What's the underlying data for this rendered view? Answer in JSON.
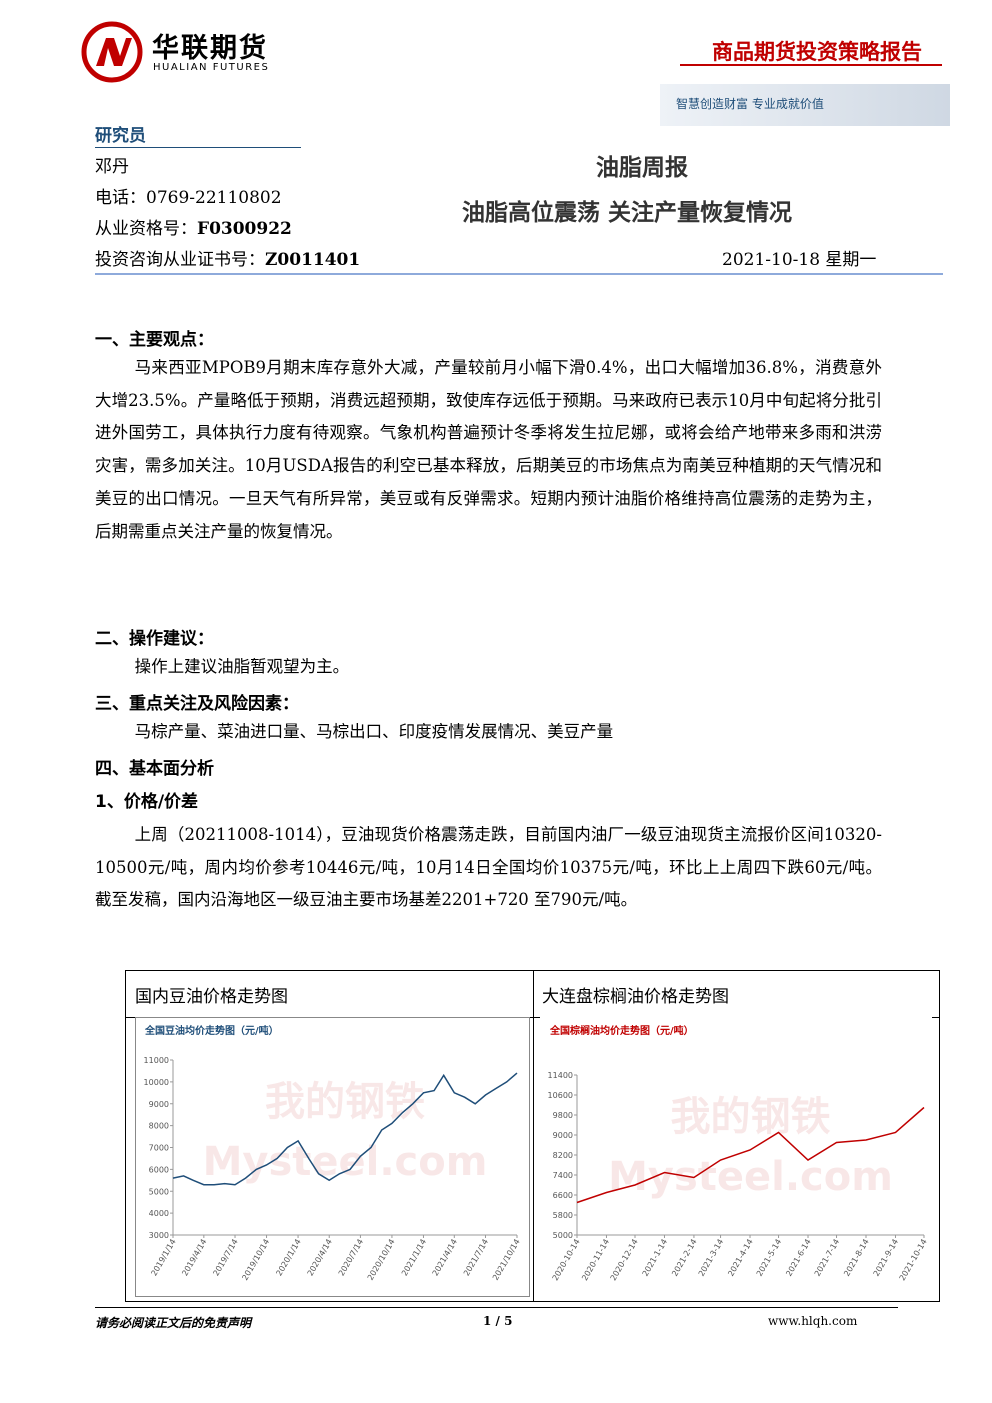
{
  "header": {
    "logo_cn": "华联期货",
    "logo_en": "HUALIAN FUTURES",
    "report_type": "商品期货投资策略报告",
    "slogan": "智慧创造财富 专业成就价值"
  },
  "analyst": {
    "heading": "研究员",
    "name": "邓丹",
    "phone_label": "电话：",
    "phone": "0769-22110802",
    "qual_label": "从业资格号：",
    "qual": "F0300922",
    "cert_label": "投资咨询从业证书号：",
    "cert": "Z0011401"
  },
  "title": {
    "main": "油脂周报",
    "sub": "油脂高位震荡 关注产量恢复情况",
    "date": "2021-10-18 星期一"
  },
  "sections": [
    {
      "heading": "一、主要观点：",
      "text": "马来西亚MPOB9月期末库存意外大减，产量较前月小幅下滑0.4%，出口大幅增加36.8%，消费意外大增23.5%。产量略低于预期，消费远超预期，致使库存远低于预期。马来政府已表示10月中旬起将分批引进外国劳工，具体执行力度有待观察。气象机构普遍预计冬季将发生拉尼娜，或将会给产地带来多雨和洪涝灾害，需多加关注。10月USDA报告的利空已基本释放，后期美豆的市场焦点为南美豆种植期的天气情况和美豆的出口情况。一旦天气有所异常，美豆或有反弹需求。短期内预计油脂价格维持高位震荡的走势为主，后期需重点关注产量的恢复情况。"
    },
    {
      "heading": "二、操作建议：",
      "text": "操作上建议油脂暂观望为主。"
    },
    {
      "heading": "三、重点关注及风险因素：",
      "text": "马棕产量、菜油进口量、马棕出口、印度疫情发展情况、美豆产量"
    },
    {
      "heading": "四、基本面分析"
    },
    {
      "heading": "1、价格/价差",
      "text": "上周（20211008-1014），豆油现货价格震荡走跌，目前国内油厂一级豆油现货主流报价区间10320-10500元/吨，周内均价参考10446元/吨，10月14日全国均价10375元/吨，环比上上周四下跌60元/吨。截至发稿，国内沿海地区一级豆油主要市场基差2201+720 至790元/吨。"
    }
  ],
  "chart_table": {
    "headers": [
      "国内豆油价格走势图",
      "大连盘棕榈油价格走势图"
    ]
  },
  "watermark": [
    "我的钢铁",
    "Mysteel.com"
  ],
  "chart_data": [
    {
      "type": "line",
      "title": "全国豆油均价走势图（元/吨）",
      "x": [
        "2019/1/14",
        "2019/2/14",
        "2019/3/14",
        "2019/4/14",
        "2019/5/14",
        "2019/6/14",
        "2019/7/14",
        "2019/8/14",
        "2019/9/14",
        "2019/10/14",
        "2019/11/14",
        "2019/12/14",
        "2020/1/14",
        "2020/2/14",
        "2020/3/14",
        "2020/4/14",
        "2020/5/14",
        "2020/6/14",
        "2020/7/14",
        "2020/8/14",
        "2020/9/14",
        "2020/10/14",
        "2020/11/14",
        "2020/12/14",
        "2021/1/14",
        "2021/2/14",
        "2021/3/14",
        "2021/4/14",
        "2021/5/14",
        "2021/6/14",
        "2021/7/14",
        "2021/8/14",
        "2021/9/14",
        "2021/10/14"
      ],
      "series": [
        {
          "color": "#1f4e79",
          "values": [
            5600,
            5700,
            5500,
            5300,
            5300,
            5350,
            5300,
            5600,
            6000,
            6200,
            6500,
            7000,
            7300,
            6500,
            5800,
            5500,
            5800,
            6000,
            6600,
            7000,
            7800,
            8100,
            8600,
            9000,
            9500,
            9600,
            10300,
            9500,
            9300,
            9000,
            9400,
            9700,
            10000,
            10400
          ]
        }
      ],
      "ylim": [
        3000,
        11000
      ],
      "yticks": [
        3000,
        4000,
        5000,
        6000,
        7000,
        8000,
        9000,
        10000,
        11000
      ],
      "xticks": [
        "2019/1/14",
        "2019/4/14",
        "2019/7/14",
        "2019/10/14",
        "2020/1/14",
        "2020/4/14",
        "2020/7/14",
        "2020/10/14",
        "2021/1/14",
        "2021/4/14",
        "2021/7/14",
        "2021/10/14"
      ],
      "title_color": "#1f4e79"
    },
    {
      "type": "line",
      "title": "全国棕榈油均价走势图（元/吨）",
      "x": [
        "2020-10-14",
        "2020-11-14",
        "2020-12-14",
        "2021-1-14",
        "2021-2-14",
        "2021-3-14",
        "2021-4-14",
        "2021-5-14",
        "2021-6-14",
        "2021-7-14",
        "2021-8-14",
        "2021-9-14",
        "2021-10-14"
      ],
      "series": [
        {
          "color": "#c00000",
          "values": [
            6300,
            6700,
            7000,
            7500,
            7300,
            8000,
            8400,
            9100,
            8000,
            8700,
            8800,
            9100,
            10100
          ]
        }
      ],
      "ylim": [
        5000,
        11400
      ],
      "yticks": [
        5000,
        5800,
        6600,
        7400,
        8200,
        9000,
        9800,
        10600,
        11400
      ],
      "xticks": [
        "2020-10-14",
        "2020-11-14",
        "2020-12-14",
        "2021-1-14",
        "2021-2-14",
        "2021-3-14",
        "2021-4-14",
        "2021-5-14",
        "2021-6-14",
        "2021-7-14",
        "2021-8-14",
        "2021-9-14",
        "2021-10-14"
      ],
      "title_color": "#c00000"
    }
  ],
  "footer": {
    "disclaimer": "请务必阅读正文后的免责声明",
    "page": "1 / 5",
    "url": "www.hlqh.com"
  }
}
